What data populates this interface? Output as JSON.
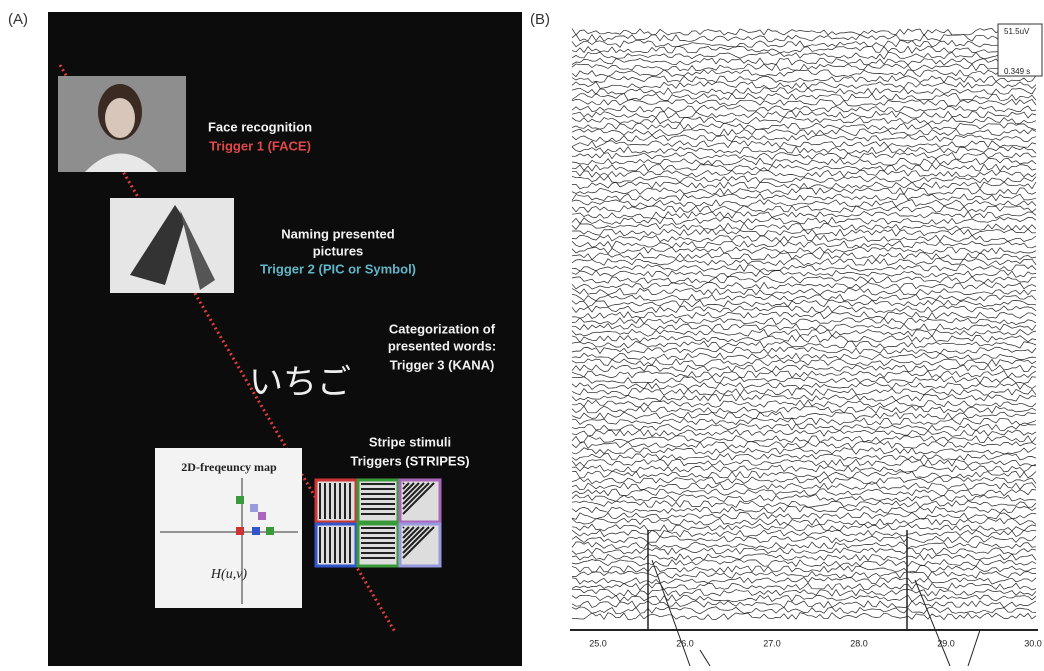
{
  "panel_a": {
    "label": "(A)",
    "face": {
      "title": "Face recognition",
      "trigger": "Trigger 1 (FACE)"
    },
    "picture": {
      "title_lines": [
        "Naming presented",
        "pictures"
      ],
      "trigger": "Trigger 2 (PIC or Symbol)"
    },
    "words": {
      "title_lines": [
        "Categorization of",
        "presented words:"
      ],
      "trigger": "Trigger 3 (KANA)",
      "word": "いちご"
    },
    "stripes": {
      "title": "Stripe stimuli",
      "trigger": "Triggers (STRIPES)"
    },
    "map": {
      "title": "2D-freqeuncy map",
      "function": "H(u,v)"
    }
  },
  "panel_b": {
    "label": "(B)",
    "scale": {
      "amplitude": "51.5uV",
      "time": "0.349 s"
    },
    "time_ticks": [
      "25.0",
      "26.0",
      "27.0",
      "28.0",
      "29.0",
      "30.0"
    ]
  }
}
